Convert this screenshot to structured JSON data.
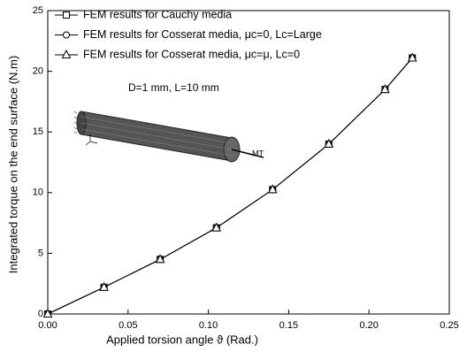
{
  "chart_data": {
    "type": "line",
    "x_label": "Applied torsion angle ϑ (Rad.)",
    "y_label": "Integrated torque on the end surface (N.m)",
    "x": [
      0,
      0.035,
      0.07,
      0.105,
      0.14,
      0.175,
      0.21,
      0.227
    ],
    "series": [
      {
        "name": "FEM results for Cauchy media",
        "color": "#000000",
        "marker": "square",
        "values": [
          0,
          2.2,
          4.5,
          7.1,
          10.25,
          14.0,
          18.5,
          21.1
        ]
      },
      {
        "name": "FEM results for Cosserat media, μc=0, Lc=Large",
        "color": "#000000",
        "marker": "circle",
        "values": [
          0,
          2.2,
          4.5,
          7.1,
          10.25,
          14.0,
          18.5,
          21.1
        ]
      },
      {
        "name": "FEM results for Cosserat media, μc=μ, Lc=0",
        "color": "#000000",
        "marker": "triangle",
        "values": [
          0,
          2.2,
          4.5,
          7.1,
          10.25,
          14.0,
          18.5,
          21.1
        ]
      }
    ],
    "xlim": [
      0,
      0.25
    ],
    "xticks": [
      {
        "value": 0,
        "label": "0.00"
      },
      {
        "value": 0.05,
        "label": "0.05"
      },
      {
        "value": 0.1,
        "label": "0.10"
      },
      {
        "value": 0.15,
        "label": "0.15"
      },
      {
        "value": 0.2,
        "label": "0.20"
      },
      {
        "value": 0.25,
        "label": "0.25"
      }
    ],
    "ylim": [
      0,
      25
    ],
    "yticks": [
      0,
      5,
      10,
      15,
      20,
      25
    ],
    "legend": "upper-left",
    "annotations": [
      "D=1 mm, L=10 mm",
      "MT"
    ]
  }
}
